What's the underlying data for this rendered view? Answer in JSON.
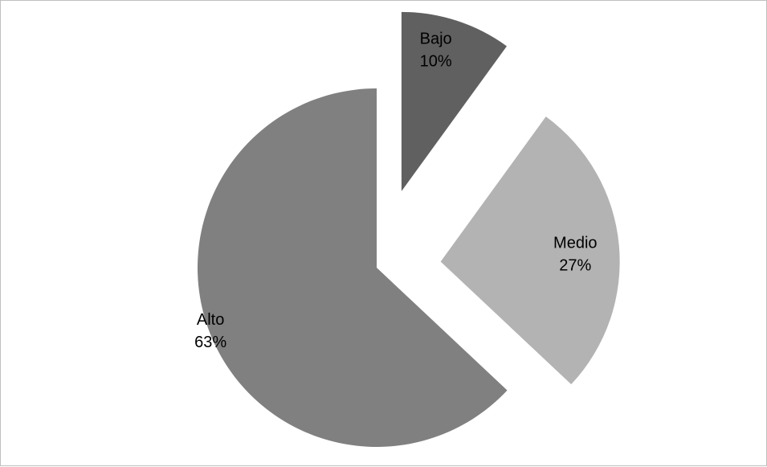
{
  "chart_data": {
    "type": "pie",
    "exploded": true,
    "slices": [
      {
        "label": "Bajo",
        "value": 10,
        "percent_label": "10%",
        "color": "#606060"
      },
      {
        "label": "Medio",
        "value": 27,
        "percent_label": "27%",
        "color": "#b3b3b3"
      },
      {
        "label": "Alto",
        "value": 63,
        "percent_label": "63%",
        "color": "#808080"
      }
    ],
    "start_angle_deg": 0,
    "direction": "clockwise",
    "legend": "none",
    "data_labels": "category-and-percent"
  }
}
